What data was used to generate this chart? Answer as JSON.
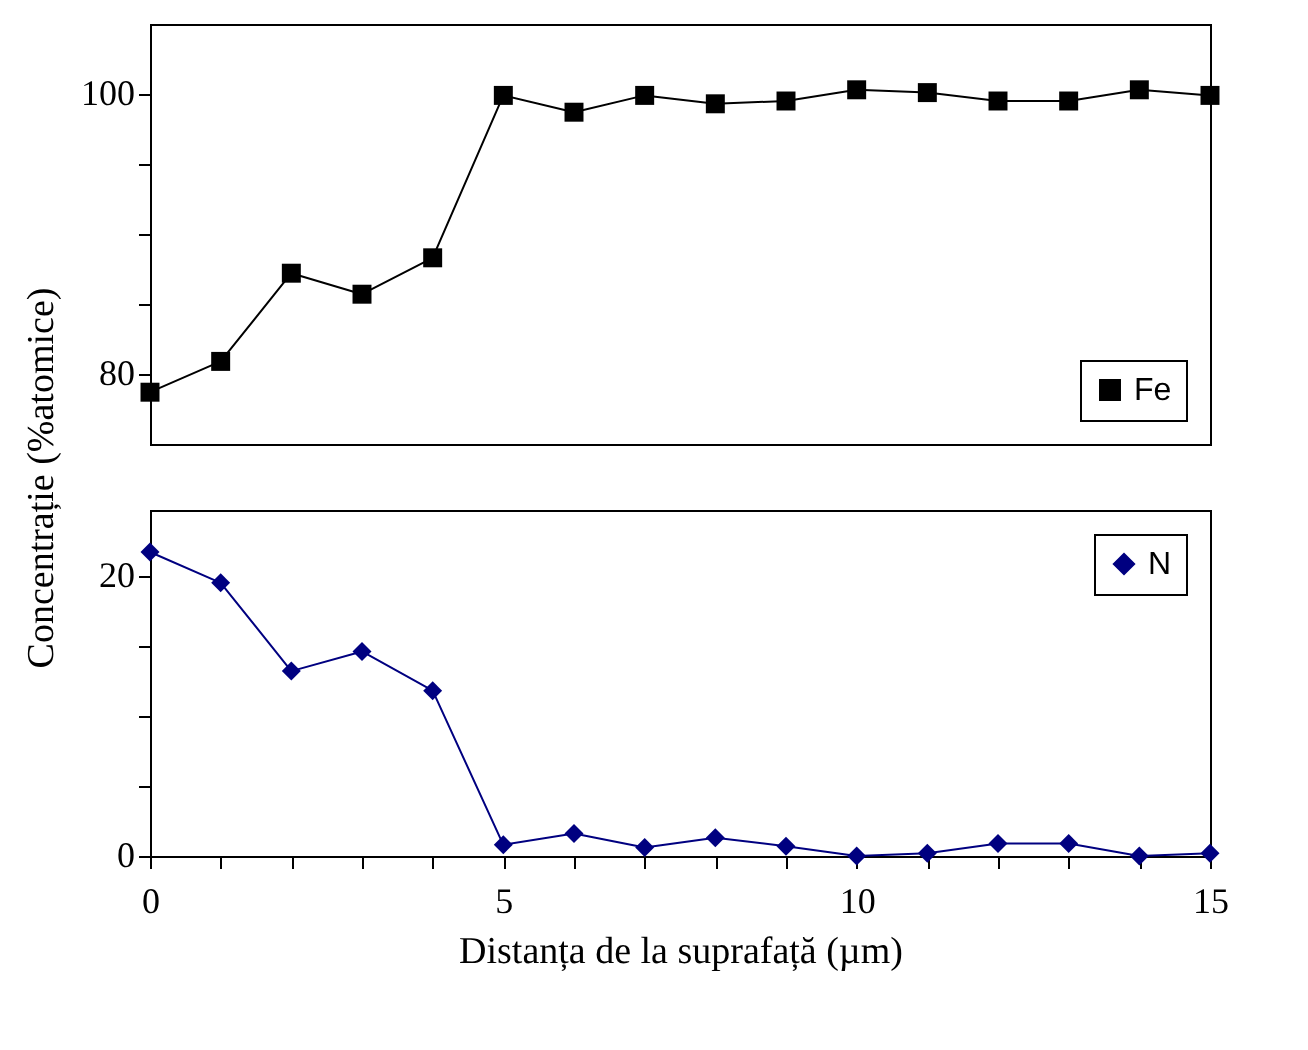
{
  "chart_data": [
    {
      "type": "line",
      "ylabel": "Concentrație (%atomice)",
      "x": [
        0,
        1,
        2,
        3,
        4,
        5,
        6,
        7,
        8,
        9,
        10,
        11,
        12,
        13,
        14,
        15
      ],
      "series": [
        {
          "name": "Fe",
          "color": "#000000",
          "marker": "square",
          "values": [
            78.7,
            80.9,
            87.2,
            85.7,
            88.3,
            99.9,
            98.7,
            99.9,
            99.3,
            99.5,
            100.3,
            100.1,
            99.5,
            99.5,
            100.3,
            99.9
          ]
        }
      ],
      "xlim": [
        0,
        15
      ],
      "ylim": [
        75,
        105
      ],
      "yticks": [
        80,
        {
          "value": 85,
          "label": null
        },
        {
          "value": 90,
          "label": null
        },
        {
          "value": 95,
          "label": null
        },
        100
      ],
      "tick_labels": "y",
      "legend": "bottom right",
      "grid": false
    },
    {
      "type": "line",
      "xlabel": "Distanța de la suprafață (µm)",
      "x": [
        0,
        1,
        2,
        3,
        4,
        5,
        6,
        7,
        8,
        9,
        10,
        11,
        12,
        13,
        14,
        15
      ],
      "series": [
        {
          "name": "N",
          "color": "#000080",
          "marker": "diamond",
          "values": [
            21.7,
            19.5,
            13.2,
            14.6,
            11.8,
            0.8,
            1.6,
            0.6,
            1.3,
            0.7,
            0,
            0.2,
            0.9,
            0.9,
            0,
            0.2
          ]
        }
      ],
      "xlim": [
        0,
        15
      ],
      "ylim": [
        0,
        24.7
      ],
      "xticks": [
        0,
        {
          "value": 1,
          "label": null
        },
        {
          "value": 2,
          "label": null
        },
        {
          "value": 3,
          "label": null
        },
        {
          "value": 4,
          "label": null
        },
        5,
        {
          "value": 6,
          "label": null
        },
        {
          "value": 7,
          "label": null
        },
        {
          "value": 8,
          "label": null
        },
        {
          "value": 9,
          "label": null
        },
        10,
        {
          "value": 11,
          "label": null
        },
        {
          "value": 12,
          "label": null
        },
        {
          "value": 13,
          "label": null
        },
        {
          "value": 14,
          "label": null
        },
        15
      ],
      "yticks": [
        0,
        {
          "value": 5,
          "label": null
        },
        {
          "value": 10,
          "label": null
        },
        {
          "value": 15,
          "label": null
        },
        20
      ],
      "legend": "top right",
      "grid": false
    }
  ]
}
